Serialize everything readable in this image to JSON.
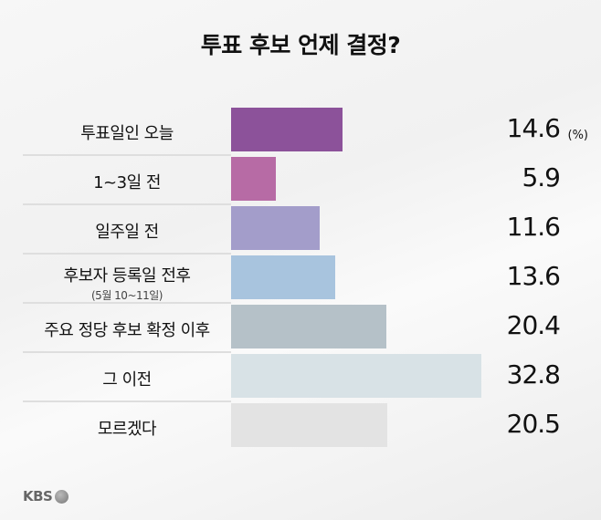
{
  "chart_data": {
    "type": "bar",
    "orientation": "horizontal",
    "title": "투표 후보 언제 결정?",
    "unit": "(%)",
    "categories": [
      "투표일인 오늘",
      "1~3일 전",
      "일주일 전",
      "후보자 등록일 전후",
      "주요 정당 후보 확정 이후",
      "그 이전",
      "모르겠다"
    ],
    "subcategories": [
      "",
      "",
      "",
      "(5월 10~11일)",
      "",
      "",
      ""
    ],
    "values": [
      14.6,
      5.9,
      11.6,
      13.6,
      20.4,
      32.8,
      20.5
    ],
    "value_labels": [
      "14.6",
      "5.9",
      "11.6",
      "13.6",
      "20.4",
      "32.8",
      "20.5"
    ],
    "colors": [
      "#8c529a",
      "#b76ba5",
      "#a39dca",
      "#a8c4de",
      "#b5c1c8",
      "#d8e2e6",
      "#e3e3e3"
    ],
    "xlim": [
      0,
      32.8
    ]
  },
  "logo": "KBS"
}
